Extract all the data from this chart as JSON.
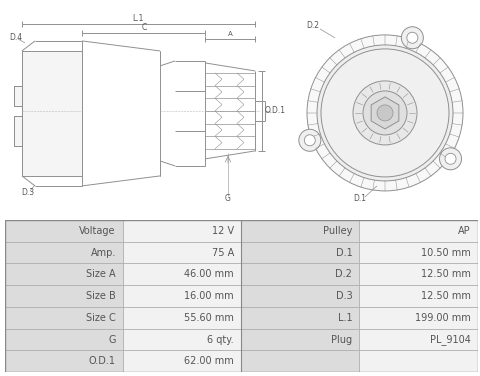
{
  "table_data": [
    [
      "Voltage",
      "12 V",
      "Pulley",
      "AP"
    ],
    [
      "Amp.",
      "75 A",
      "D.1",
      "10.50 mm"
    ],
    [
      "Size A",
      "46.00 mm",
      "D.2",
      "12.50 mm"
    ],
    [
      "Size B",
      "16.00 mm",
      "D.3",
      "12.50 mm"
    ],
    [
      "Size C",
      "55.60 mm",
      "L.1",
      "199.00 mm"
    ],
    [
      "G",
      "6 qty.",
      "Plug",
      "PL_9104"
    ],
    [
      "O.D.1",
      "62.00 mm",
      "",
      ""
    ]
  ],
  "lc": "#909090",
  "lw": 0.7,
  "bg": "#ffffff",
  "text_color": "#555555",
  "table_label_bg": "#dcdcdc",
  "table_value_bg": "#f2f2f2",
  "table_border": "#aaaaaa",
  "table_text_size": 7
}
